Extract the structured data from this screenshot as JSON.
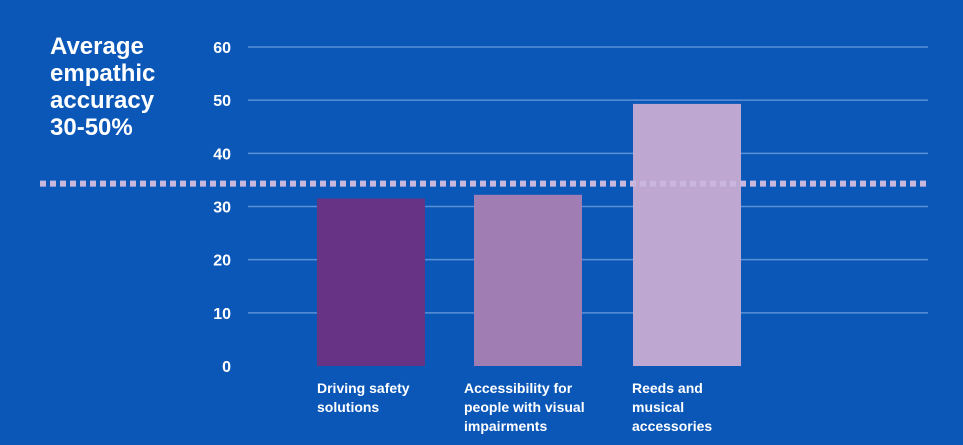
{
  "chart_data": {
    "type": "bar",
    "title": "",
    "xlabel": "",
    "ylabel": "",
    "ylim": [
      0,
      60
    ],
    "yticks": [
      0,
      10,
      20,
      30,
      40,
      50,
      60
    ],
    "categories": [
      "Driving safety solutions",
      "Accessibility for people with visual impairments",
      "Reeds and musical accessories"
    ],
    "category_lines": [
      [
        "Driving safety",
        "solutions"
      ],
      [
        "Accessibility for",
        "people with visual",
        "impairments"
      ],
      [
        "Reeds and",
        "musical",
        "accessories"
      ]
    ],
    "values": [
      31.5,
      32.2,
      49.3
    ],
    "bar_colors": [
      "#673384",
      "#a07db3",
      "#bea7d0"
    ],
    "reference_line": {
      "value": 34.3,
      "style": "dotted",
      "color": "#c9b7dd",
      "label_lines": [
        "Average",
        "empathic",
        "accuracy",
        "30-50%"
      ]
    },
    "grid": true,
    "grid_color": "#5b8fd6",
    "background_color": "#0a57b8",
    "text_color": "#ffffff"
  }
}
